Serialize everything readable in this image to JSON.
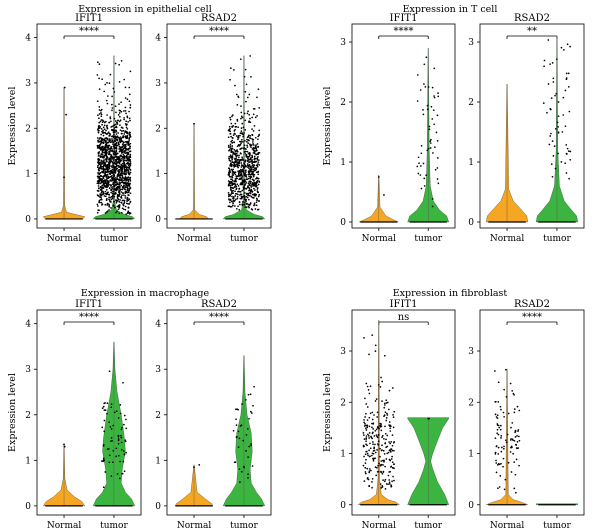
{
  "colors": {
    "normal": "#f5a623",
    "tumor": "#3cb540",
    "points": "#000000",
    "axis": "#000000"
  },
  "chart_data": [
    {
      "type": "violin",
      "title": "Expression in epithelial cell",
      "ylabel": "Expression level",
      "ylim": [
        -0.2,
        4.3
      ],
      "yticks": [
        0,
        1,
        2,
        3,
        4
      ],
      "categories": [
        "Normal",
        "tumor"
      ],
      "panels": [
        {
          "title": "IFIT1",
          "significance": "****",
          "normal": {
            "max": 2.9,
            "shape": [
              [
                0,
                0.9
              ],
              [
                0.05,
                1
              ],
              [
                0.1,
                0.55
              ],
              [
                0.15,
                0.12
              ],
              [
                0.3,
                0.03
              ],
              [
                2.9,
                0.01
              ]
            ],
            "points": [
              [
                0.0,
                0.92
              ],
              [
                0.1,
                2.3
              ],
              [
                0.03,
                2.9
              ]
            ]
          },
          "tumor": {
            "max": 3.6,
            "shape": [
              [
                0,
                1
              ],
              [
                0.05,
                0.9
              ],
              [
                0.1,
                0.5
              ],
              [
                0.2,
                0.12
              ],
              [
                0.4,
                0.03
              ],
              [
                3.6,
                0.01
              ]
            ],
            "points": [],
            "cloud": {
              "n": 1400,
              "min": 0.1,
              "max": 3.6,
              "center": 1.2,
              "spread": 0.55,
              "width": 0.8,
              "seed": 11
            }
          }
        },
        {
          "title": "RSAD2",
          "significance": "****",
          "normal": {
            "max": 2.1,
            "shape": [
              [
                0,
                0.7
              ],
              [
                0.05,
                0.6
              ],
              [
                0.1,
                0.25
              ],
              [
                0.2,
                0.03
              ],
              [
                2.1,
                0.01
              ]
            ],
            "points": [
              [
                0.0,
                2.1
              ]
            ]
          },
          "tumor": {
            "max": 3.6,
            "shape": [
              [
                0,
                1
              ],
              [
                0.05,
                0.9
              ],
              [
                0.1,
                0.5
              ],
              [
                0.2,
                0.12
              ],
              [
                0.4,
                0.03
              ],
              [
                3.6,
                0.01
              ]
            ],
            "points": [],
            "cloud": {
              "n": 800,
              "min": 0.2,
              "max": 3.6,
              "center": 1.0,
              "spread": 0.55,
              "width": 0.75,
              "seed": 23
            }
          }
        }
      ]
    },
    {
      "type": "violin",
      "title": "Expression in T cell",
      "ylabel": "Expression level",
      "ylim": [
        -0.1,
        3.3
      ],
      "yticks": [
        0,
        1,
        2,
        3
      ],
      "categories": [
        "Normal",
        "tumor"
      ],
      "panels": [
        {
          "title": "IFIT1",
          "significance": "****",
          "normal": {
            "max": 0.78,
            "shape": [
              [
                0,
                0.95
              ],
              [
                0.04,
                0.7
              ],
              [
                0.1,
                0.35
              ],
              [
                0.25,
                0.06
              ],
              [
                0.78,
                0.01
              ]
            ],
            "points": [
              [
                0.0,
                0.75
              ],
              [
                0.25,
                0.45
              ]
            ]
          },
          "tumor": {
            "max": 2.9,
            "shape": [
              [
                0,
                1
              ],
              [
                0.1,
                0.9
              ],
              [
                0.2,
                0.55
              ],
              [
                0.35,
                0.25
              ],
              [
                0.6,
                0.1
              ],
              [
                1.2,
                0.05
              ],
              [
                2.9,
                0.01
              ]
            ],
            "points": [],
            "cloud": {
              "n": 55,
              "min": 0.2,
              "max": 2.9,
              "center": 1.5,
              "spread": 0.65,
              "width": 0.55,
              "seed": 37
            }
          }
        },
        {
          "title": "RSAD2",
          "significance": "**",
          "normal": {
            "max": 2.3,
            "shape": [
              [
                0,
                1
              ],
              [
                0.1,
                0.95
              ],
              [
                0.2,
                0.7
              ],
              [
                0.35,
                0.3
              ],
              [
                0.55,
                0.08
              ],
              [
                2.3,
                0.01
              ]
            ],
            "points": []
          },
          "tumor": {
            "max": 3.1,
            "shape": [
              [
                0,
                1
              ],
              [
                0.1,
                0.95
              ],
              [
                0.2,
                0.7
              ],
              [
                0.35,
                0.35
              ],
              [
                0.6,
                0.12
              ],
              [
                1.2,
                0.04
              ],
              [
                3.1,
                0.01
              ]
            ],
            "points": [],
            "cloud": {
              "n": 60,
              "min": 0.3,
              "max": 3.1,
              "center": 1.8,
              "spread": 0.7,
              "width": 0.65,
              "seed": 41
            }
          }
        }
      ]
    },
    {
      "type": "violin",
      "title": "Expression in macrophage",
      "ylabel": "Expression level",
      "ylim": [
        -0.2,
        4.3
      ],
      "yticks": [
        0,
        1,
        2,
        3,
        4
      ],
      "categories": [
        "Normal",
        "tumor"
      ],
      "panels": [
        {
          "title": "IFIT1",
          "significance": "****",
          "normal": {
            "max": 1.35,
            "shape": [
              [
                0,
                1
              ],
              [
                0.1,
                0.85
              ],
              [
                0.2,
                0.5
              ],
              [
                0.35,
                0.15
              ],
              [
                0.6,
                0.04
              ],
              [
                1.35,
                0.01
              ]
            ],
            "points": [
              [
                0.0,
                1.35
              ],
              [
                0.03,
                1.3
              ]
            ]
          },
          "tumor": {
            "max": 3.6,
            "shape": [
              [
                0,
                1
              ],
              [
                0.15,
                0.85
              ],
              [
                0.3,
                0.55
              ],
              [
                0.5,
                0.35
              ],
              [
                0.8,
                0.4
              ],
              [
                1.2,
                0.55
              ],
              [
                1.5,
                0.5
              ],
              [
                2.0,
                0.35
              ],
              [
                2.5,
                0.15
              ],
              [
                3.0,
                0.05
              ],
              [
                3.6,
                0.01
              ]
            ],
            "points": [],
            "cloud": {
              "n": 75,
              "min": 0.4,
              "max": 3.6,
              "center": 1.4,
              "spread": 0.6,
              "width": 0.6,
              "seed": 53
            }
          }
        },
        {
          "title": "RSAD2",
          "significance": "****",
          "normal": {
            "max": 0.9,
            "shape": [
              [
                0,
                0.9
              ],
              [
                0.05,
                0.85
              ],
              [
                0.15,
                0.55
              ],
              [
                0.3,
                0.15
              ],
              [
                0.9,
                0.01
              ]
            ],
            "points": [
              [
                0.0,
                0.85
              ],
              [
                0.25,
                0.9
              ]
            ]
          },
          "tumor": {
            "max": 3.3,
            "shape": [
              [
                0,
                1
              ],
              [
                0.15,
                0.85
              ],
              [
                0.3,
                0.6
              ],
              [
                0.5,
                0.35
              ],
              [
                0.8,
                0.3
              ],
              [
                1.2,
                0.4
              ],
              [
                1.6,
                0.35
              ],
              [
                2.0,
                0.15
              ],
              [
                2.5,
                0.05
              ],
              [
                3.3,
                0.01
              ]
            ],
            "points": [],
            "cloud": {
              "n": 40,
              "min": 0.3,
              "max": 3.3,
              "center": 1.3,
              "spread": 0.6,
              "width": 0.5,
              "seed": 67
            }
          }
        }
      ]
    },
    {
      "type": "violin",
      "title": "Expression in fibroblast",
      "ylabel": "Expression level",
      "ylim": [
        -0.2,
        3.8
      ],
      "yticks": [
        0,
        1,
        2,
        3
      ],
      "categories": [
        "Normal",
        "tumor"
      ],
      "panels": [
        {
          "title": "IFIT1",
          "significance": "ns",
          "normal": {
            "max": 3.6,
            "shape": [
              [
                0,
                1
              ],
              [
                0.05,
                0.85
              ],
              [
                0.1,
                0.45
              ],
              [
                0.2,
                0.12
              ],
              [
                0.5,
                0.04
              ],
              [
                3.6,
                0.01
              ]
            ],
            "points": [],
            "cloud": {
              "n": 260,
              "min": 0.3,
              "max": 3.6,
              "center": 1.2,
              "spread": 0.55,
              "width": 0.75,
              "seed": 79
            }
          },
          "tumor": {
            "max": 1.7,
            "shape": [
              [
                0,
                1
              ],
              [
                0.2,
                0.8
              ],
              [
                0.45,
                0.45
              ],
              [
                0.7,
                0.22
              ],
              [
                0.85,
                0.12
              ],
              [
                1.0,
                0.22
              ],
              [
                1.25,
                0.45
              ],
              [
                1.5,
                0.7
              ],
              [
                1.68,
                1
              ],
              [
                1.7,
                1
              ]
            ],
            "points": [
              [
                0.0,
                1.68
              ],
              [
                0.04,
                1.68
              ]
            ]
          }
        },
        {
          "title": "RSAD2",
          "significance": "****",
          "normal": {
            "max": 2.65,
            "shape": [
              [
                0,
                1
              ],
              [
                0.05,
                0.7
              ],
              [
                0.1,
                0.3
              ],
              [
                0.2,
                0.06
              ],
              [
                2.65,
                0.01
              ]
            ],
            "points": [],
            "cloud": {
              "n": 100,
              "min": 0.2,
              "max": 2.65,
              "center": 1.2,
              "spread": 0.5,
              "width": 0.6,
              "seed": 97
            }
          },
          "tumor": {
            "max": 0.02,
            "shape": [
              [
                0,
                1
              ],
              [
                0.02,
                1
              ]
            ],
            "points": []
          }
        }
      ]
    }
  ]
}
